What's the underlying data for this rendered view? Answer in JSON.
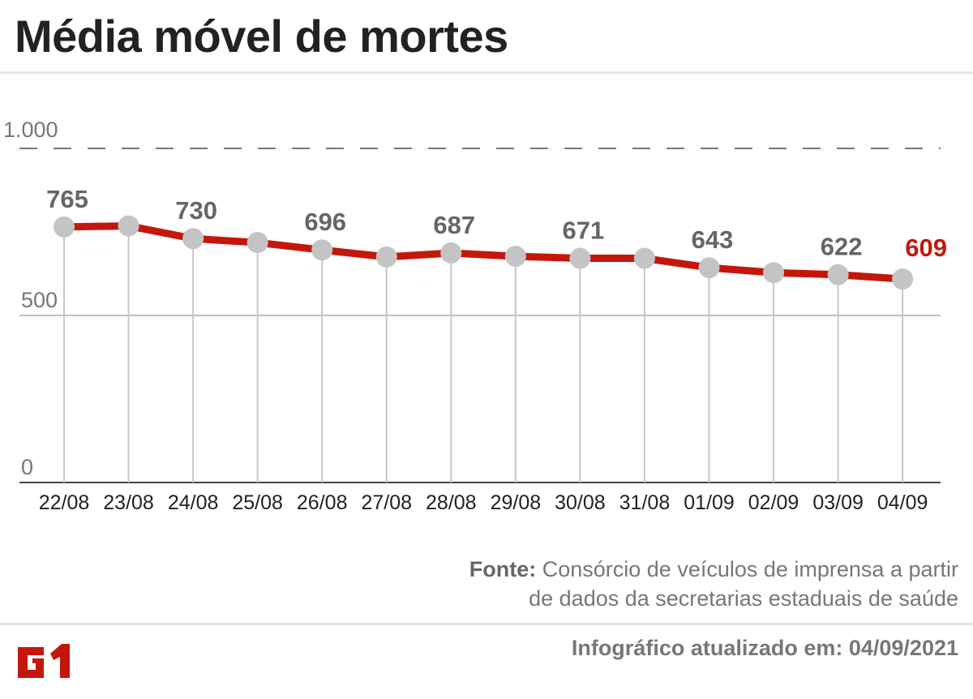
{
  "title": "Média móvel de mortes",
  "chart_data": {
    "type": "line",
    "title": "Média móvel de mortes",
    "categories": [
      "22/08",
      "23/08",
      "24/08",
      "25/08",
      "26/08",
      "27/08",
      "28/08",
      "29/08",
      "30/08",
      "31/08",
      "01/09",
      "02/09",
      "03/09",
      "04/09"
    ],
    "values": [
      765,
      768,
      730,
      718,
      696,
      675,
      687,
      677,
      671,
      671,
      643,
      628,
      622,
      609
    ],
    "data_labels": [
      "765",
      "",
      "730",
      "",
      "696",
      "",
      "687",
      "",
      "671",
      "",
      "643",
      "",
      "622",
      "609"
    ],
    "yticks": [
      {
        "value": 0,
        "label": "0"
      },
      {
        "value": 500,
        "label": "500"
      },
      {
        "value": 1000,
        "label": "1.000"
      }
    ],
    "ylim": [
      0,
      1000
    ],
    "grid": true,
    "line_color": "#c4170c",
    "marker_color": "#c4c4c4",
    "highlight_color": "#c4170c"
  },
  "source_label": "Fonte:",
  "source_text_1": "Consórcio de veículos de imprensa a partir",
  "source_text_2": "de dados da secretarias estaduais de saúde",
  "updated": "Infográfico atualizado em: 04/09/2021",
  "logo_text": "G1"
}
